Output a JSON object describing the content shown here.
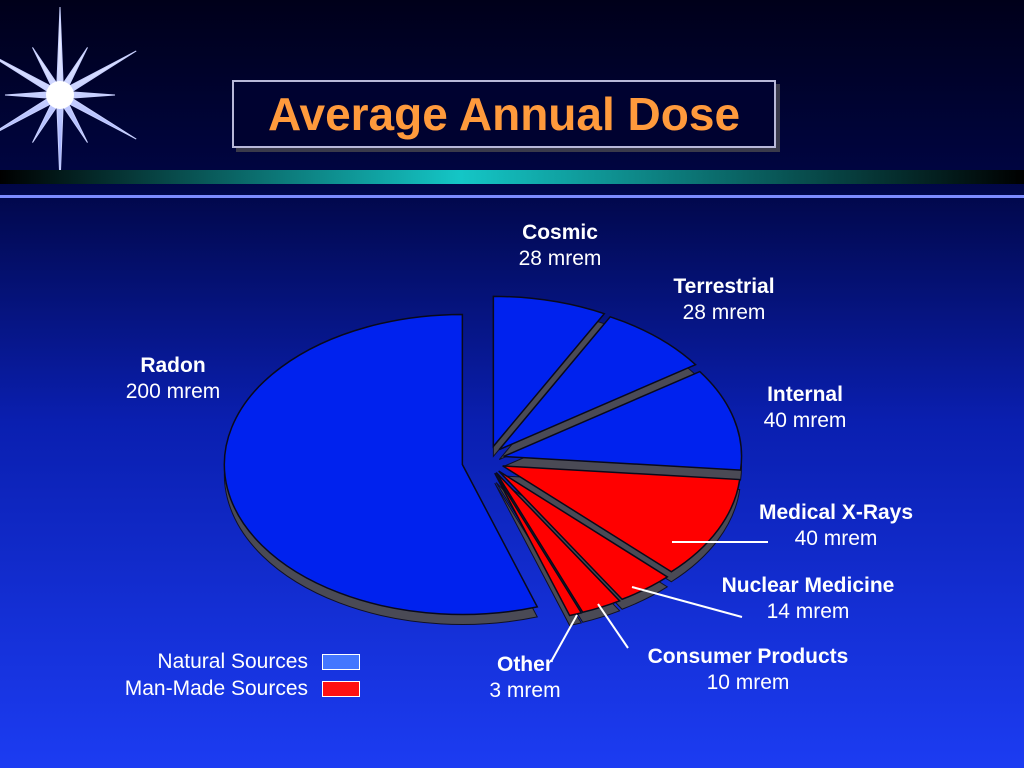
{
  "title": "Average Annual Dose",
  "colors": {
    "natural": "#0022ee",
    "man_made": "#ff0000",
    "side": "#4a4a55",
    "legend_natural": "#4477ff",
    "legend_man_made": "#ff1111"
  },
  "legend": [
    {
      "label": "Natural Sources",
      "color_key": "legend_natural"
    },
    {
      "label": "Man-Made Sources",
      "color_key": "legend_man_made"
    }
  ],
  "chart_data": {
    "type": "pie",
    "title": "Average Annual Dose",
    "unit": "mrem",
    "slices": [
      {
        "name": "Cosmic",
        "value": 28,
        "value_label": "28 mrem",
        "group": "Natural Sources"
      },
      {
        "name": "Terrestrial",
        "value": 28,
        "value_label": "28 mrem",
        "group": "Natural Sources"
      },
      {
        "name": "Internal",
        "value": 40,
        "value_label": "40 mrem",
        "group": "Natural Sources"
      },
      {
        "name": "Medical X-Rays",
        "value": 40,
        "value_label": "40 mrem",
        "group": "Man-Made Sources"
      },
      {
        "name": "Nuclear Medicine",
        "value": 14,
        "value_label": "14 mrem",
        "group": "Man-Made Sources"
      },
      {
        "name": "Consumer Products",
        "value": 10,
        "value_label": "10 mrem",
        "group": "Man-Made Sources"
      },
      {
        "name": "Other",
        "value": 3,
        "value_label": "3 mrem",
        "group": "Man-Made Sources"
      },
      {
        "name": "Radon",
        "value": 200,
        "value_label": "200 mrem",
        "group": "Natural Sources"
      }
    ]
  }
}
